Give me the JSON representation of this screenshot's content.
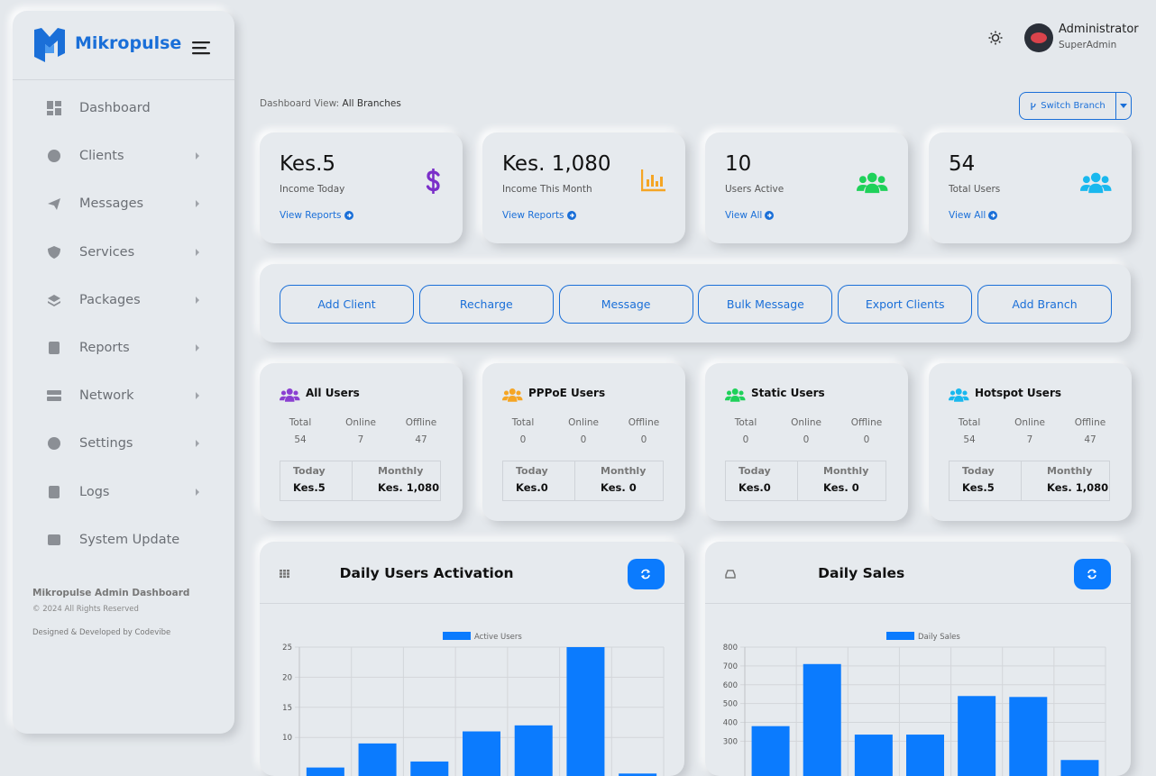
{
  "sidebar": {
    "brand": "Mikropulse",
    "menu": [
      {
        "label": "Dashboard",
        "submenu": false
      },
      {
        "label": "Clients",
        "submenu": true
      },
      {
        "label": "Messages",
        "submenu": true
      },
      {
        "label": "Services",
        "submenu": true
      },
      {
        "label": "Packages",
        "submenu": true
      },
      {
        "label": "Reports",
        "submenu": true
      },
      {
        "label": "Network",
        "submenu": true
      },
      {
        "label": "Settings",
        "submenu": true
      },
      {
        "label": "Logs",
        "submenu": true
      },
      {
        "label": "System Update",
        "submenu": false
      }
    ],
    "footer": {
      "title": "Mikropulse Admin Dashboard",
      "copyright": "© 2024 All Rights Reserved",
      "credit": "Designed & Developed by Codevibe"
    }
  },
  "topbar": {
    "user": "Administrator",
    "role": "SuperAdmin"
  },
  "view": {
    "label": "Dashboard View:",
    "value": "All Branches"
  },
  "switch_branch": "Switch Branch",
  "stats": [
    {
      "value": "Kes.5",
      "label": "Income Today",
      "link": "View Reports",
      "icon": "dollar",
      "icon_color": "#7b2fc9"
    },
    {
      "value": "Kes. 1,080",
      "label": "Income This Month",
      "link": "View Reports",
      "icon": "bars",
      "icon_color": "#f5a524"
    },
    {
      "value": "10",
      "label": "Users Active",
      "link": "View All",
      "icon": "users",
      "icon_color": "#1fd15a"
    },
    {
      "value": "54",
      "label": "Total Users",
      "link": "View All",
      "icon": "users",
      "icon_color": "#19b8ee"
    }
  ],
  "actions": [
    "Add Client",
    "Recharge",
    "Message",
    "Bulk Message",
    "Export Clients",
    "Add Branch"
  ],
  "count_headers": [
    "Total",
    "Online",
    "Offline"
  ],
  "amount_headers": [
    "Today",
    "Monthly"
  ],
  "user_cards": [
    {
      "title": "All Users",
      "icon_color": "#8a3fd1",
      "counts": [
        54,
        7,
        47
      ],
      "amounts": [
        "Kes.5",
        "Kes. 1,080"
      ]
    },
    {
      "title": "PPPoE Users",
      "icon_color": "#f5a524",
      "counts": [
        0,
        0,
        0
      ],
      "amounts": [
        "Kes.0",
        "Kes. 0"
      ]
    },
    {
      "title": "Static Users",
      "icon_color": "#1fd15a",
      "counts": [
        0,
        0,
        0
      ],
      "amounts": [
        "Kes.0",
        "Kes. 0"
      ]
    },
    {
      "title": "Hotspot Users",
      "icon_color": "#19b8ee",
      "counts": [
        54,
        7,
        47
      ],
      "amounts": [
        "Kes.5",
        "Kes. 1,080"
      ]
    }
  ],
  "chart_data": [
    {
      "type": "bar",
      "title": "Daily Users Activation",
      "categories": [
        null,
        null,
        null,
        null,
        null,
        null,
        null
      ],
      "series": [
        {
          "name": "Active Users",
          "color": "#0b7bfe",
          "values": [
            5,
            9,
            6,
            11,
            12,
            25,
            4
          ]
        }
      ],
      "ylim": [
        0,
        25
      ],
      "yticks": [
        10,
        15,
        20,
        25
      ],
      "grid": true,
      "legend": "top"
    },
    {
      "type": "bar",
      "title": "Daily Sales",
      "categories": [
        null,
        null,
        null,
        null,
        null,
        null,
        null
      ],
      "series": [
        {
          "name": "Daily Sales",
          "color": "#0b7bfe",
          "values": [
            380,
            710,
            335,
            335,
            540,
            535,
            200
          ]
        }
      ],
      "ylim": [
        0,
        800
      ],
      "yticks": [
        300,
        400,
        500,
        600,
        700,
        800
      ],
      "grid": true,
      "legend": "top"
    }
  ]
}
